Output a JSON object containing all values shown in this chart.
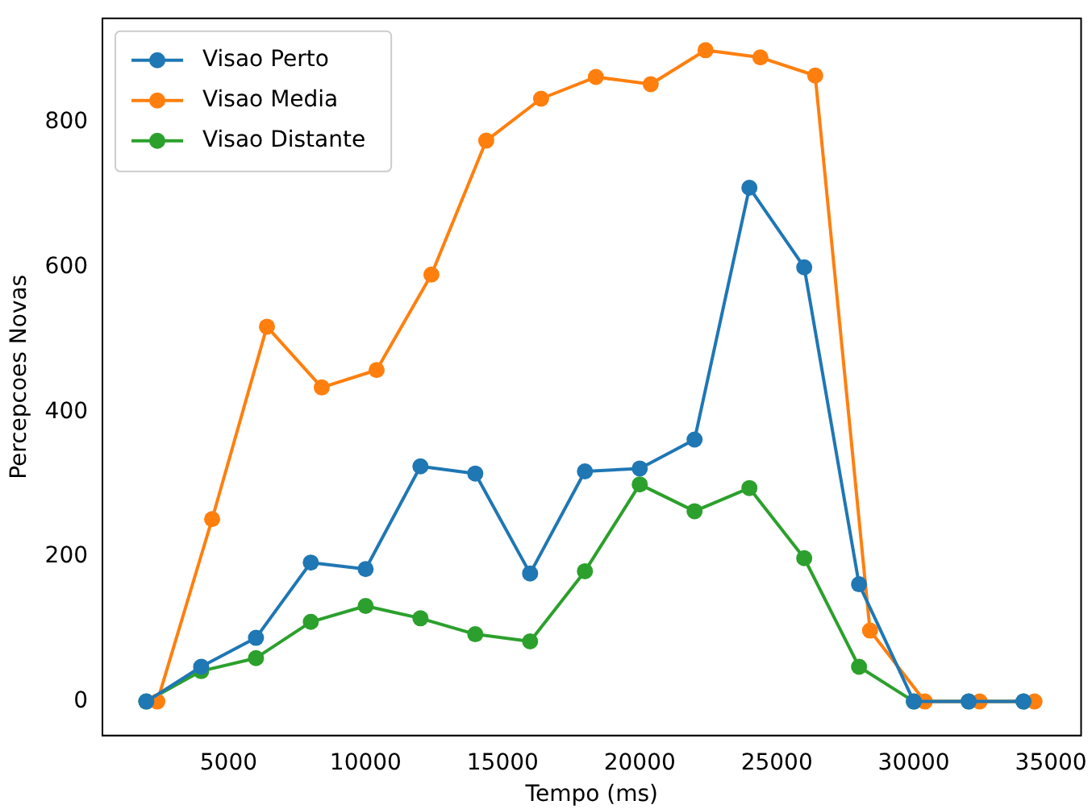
{
  "chart_data": {
    "type": "line",
    "xlabel": "Tempo (ms)",
    "ylabel": "Percepcoes Novas",
    "xlim": [
      400,
      36100
    ],
    "ylim": [
      -47,
      944
    ],
    "xticks": [
      5000,
      10000,
      15000,
      20000,
      25000,
      30000,
      35000
    ],
    "yticks": [
      0,
      200,
      400,
      600,
      800
    ],
    "grid": false,
    "legend": "top left",
    "marker": "circle",
    "line_style": "solid",
    "series": [
      {
        "name": "Visao Perto",
        "color": "#1f77b4",
        "x": [
          2000,
          4000,
          6000,
          8000,
          10000,
          12000,
          14000,
          16000,
          18000,
          20000,
          22000,
          24000,
          26000,
          28000,
          30000,
          32000,
          34000
        ],
        "values": [
          0,
          48,
          88,
          192,
          183,
          325,
          315,
          177,
          318,
          322,
          362,
          710,
          600,
          162,
          0,
          0,
          0
        ]
      },
      {
        "name": "Visao Media",
        "color": "#ff7f0e",
        "x": [
          2400,
          4400,
          6400,
          8400,
          10400,
          12400,
          14400,
          16400,
          18400,
          20400,
          22400,
          24400,
          26400,
          28400,
          30400,
          32400,
          34400
        ],
        "values": [
          0,
          252,
          518,
          434,
          458,
          590,
          775,
          833,
          863,
          853,
          900,
          890,
          865,
          98,
          0,
          0,
          0
        ]
      },
      {
        "name": "Visao Distante",
        "color": "#2ca02c",
        "x": [
          2000,
          4000,
          6000,
          8000,
          10000,
          12000,
          14000,
          16000,
          18000,
          20000,
          22000,
          24000,
          26000,
          28000,
          30000,
          32000,
          34000
        ],
        "values": [
          0,
          42,
          60,
          110,
          132,
          115,
          93,
          83,
          180,
          300,
          263,
          295,
          198,
          48,
          0,
          0,
          0
        ]
      }
    ]
  }
}
